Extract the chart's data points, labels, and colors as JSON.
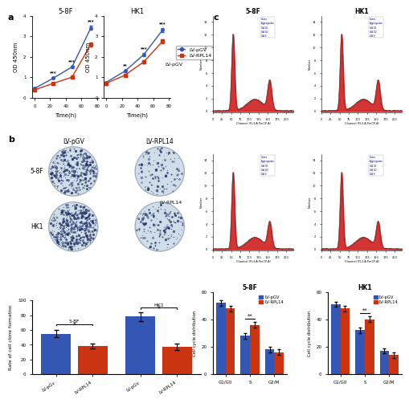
{
  "panel_a_left_title": "5-8F",
  "panel_a_right_title": "HK1",
  "time_points": [
    0,
    24,
    48,
    72
  ],
  "cck8_5_8F_pGV": [
    0.45,
    0.95,
    1.5,
    3.4
  ],
  "cck8_5_8F_RPL14": [
    0.38,
    0.7,
    1.0,
    2.6
  ],
  "cck8_HK1_pGV": [
    0.75,
    1.3,
    2.1,
    3.3
  ],
  "cck8_HK1_RPL14": [
    0.7,
    1.1,
    1.75,
    2.75
  ],
  "cck8_5_8F_pGV_err": [
    0.03,
    0.04,
    0.06,
    0.1
  ],
  "cck8_5_8F_RPL14_err": [
    0.03,
    0.04,
    0.05,
    0.1
  ],
  "cck8_HK1_pGV_err": [
    0.03,
    0.05,
    0.07,
    0.1
  ],
  "cck8_HK1_RPL14_err": [
    0.03,
    0.04,
    0.06,
    0.1
  ],
  "sig_5_8F": [
    "***",
    "***",
    "***"
  ],
  "sig_HK1": [
    "**",
    "***",
    "***"
  ],
  "color_pGV": "#3456B4",
  "color_RPL14": "#CC3311",
  "ylabel_cck8": "OD 450nm",
  "xlabel_time": "Time(h)",
  "colony_5_8F_pGV": 55,
  "colony_5_8F_RPL14": 38,
  "colony_HK1_pGV": 78,
  "colony_HK1_RPL14": 37,
  "colony_5_8F_pGV_err": 5,
  "colony_5_8F_RPL14_err": 3,
  "colony_HK1_pGV_err": 6,
  "colony_HK1_RPL14_err": 4,
  "colony_ylabel": "Rate of cell clone formation",
  "colony_labels": [
    "LV-pGv",
    "LV-RPL14",
    "LV-pGv",
    "LV-RPL14"
  ],
  "colony_sig_58F": "*",
  "colony_sig_HK1": "*",
  "cell_cycle_5_8F_pGV_G1": 52,
  "cell_cycle_5_8F_pGV_S": 28,
  "cell_cycle_5_8F_pGV_G2": 18,
  "cell_cycle_5_8F_RPL14_G1": 48,
  "cell_cycle_5_8F_RPL14_S": 36,
  "cell_cycle_5_8F_RPL14_G2": 16,
  "cell_cycle_HK1_pGV_G1": 51,
  "cell_cycle_HK1_pGV_S": 32,
  "cell_cycle_HK1_pGV_G2": 17,
  "cell_cycle_HK1_RPL14_G1": 48,
  "cell_cycle_HK1_RPL14_S": 40,
  "cell_cycle_HK1_RPL14_G2": 14,
  "cell_cycle_err": 2,
  "cell_cycle_ylabel": "Cell cycle distribution",
  "cell_cycle_xlabel": [
    "G1/G0",
    "S",
    "G2/M"
  ],
  "cell_cycle_sig_5_8F": "**",
  "cell_cycle_sig_HK1": "**",
  "cell_cycle_5_8F_title": "5-8F",
  "cell_cycle_HK1_title": "HK1",
  "n_dots_colony": [
    350,
    120,
    480,
    150
  ],
  "bg_colony": "#c8d8e8",
  "dot_color_colony": "#223366"
}
